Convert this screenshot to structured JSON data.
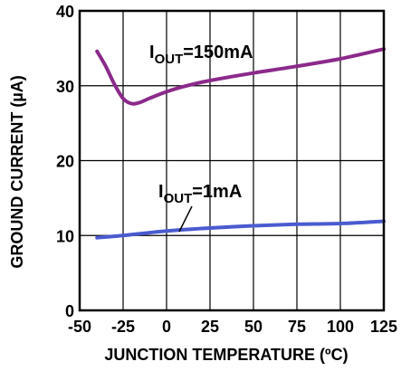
{
  "chart_data": {
    "type": "line",
    "title": "",
    "xlabel": "JUNCTION TEMPERATURE (ºC)",
    "ylabel": "GROUND CURRENT (µA)",
    "xlim": [
      -50,
      125
    ],
    "ylim": [
      0,
      40
    ],
    "x_ticks": [
      "-50",
      "-25",
      "0",
      "25",
      "50",
      "75",
      "100",
      "125"
    ],
    "y_ticks": [
      "0",
      "10",
      "20",
      "30",
      "40"
    ],
    "grid": true,
    "annotations": [
      {
        "main": "I",
        "sub": "OUT",
        "rest": "=150mA"
      },
      {
        "main": "I",
        "sub": "OUT",
        "rest": "=1mA"
      }
    ],
    "series": [
      {
        "color": "#8b2a8b",
        "x": [
          -40,
          -35,
          -30,
          -25,
          -20,
          -15,
          -10,
          0,
          10,
          25,
          50,
          75,
          100,
          125
        ],
        "y": [
          34.6,
          32.6,
          30.2,
          28.3,
          27.6,
          27.8,
          28.3,
          29.2,
          29.9,
          30.7,
          31.7,
          32.6,
          33.6,
          34.9
        ]
      },
      {
        "color": "#4a5bd0",
        "x": [
          -40,
          -25,
          0,
          25,
          50,
          75,
          100,
          125
        ],
        "y": [
          9.7,
          10.0,
          10.6,
          11.0,
          11.3,
          11.5,
          11.6,
          11.9
        ]
      }
    ]
  }
}
